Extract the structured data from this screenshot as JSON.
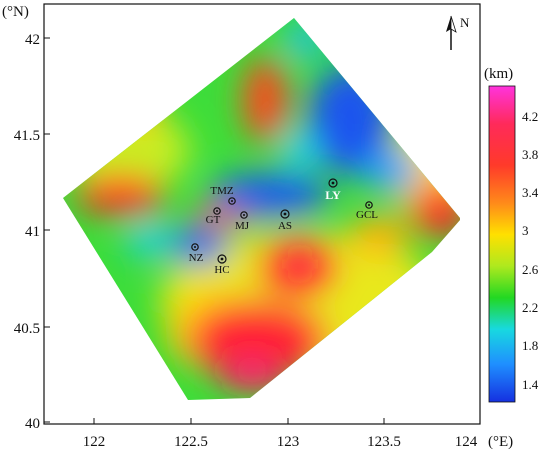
{
  "axes": {
    "x_unit": "(°E)",
    "y_unit": "(°N)",
    "x_ticks": [
      "122",
      "122.5",
      "123",
      "123.5",
      "124"
    ],
    "y_ticks": [
      "42",
      "41.5",
      "41",
      "40.5",
      "40"
    ]
  },
  "north_arrow": {
    "label": "N",
    "icon": "north-arrow-icon"
  },
  "colorbar": {
    "unit": "(km)",
    "ticks": [
      "4.2",
      "3.8",
      "3.4",
      "3",
      "2.6",
      "2.2",
      "1.8",
      "1.4"
    ],
    "colors": [
      "#ff33dd",
      "#ff2a2a",
      "#ff7a1a",
      "#ffe000",
      "#aee91e",
      "#22d822",
      "#18d9e0",
      "#1f8fff",
      "#1530e0"
    ]
  },
  "stations": [
    {
      "code": "TMZ",
      "highlight": false
    },
    {
      "code": "GT",
      "highlight": false
    },
    {
      "code": "MJ",
      "highlight": false
    },
    {
      "code": "AS",
      "highlight": false
    },
    {
      "code": "LY",
      "highlight": true
    },
    {
      "code": "GCL",
      "highlight": false
    },
    {
      "code": "NZ",
      "highlight": false
    },
    {
      "code": "HC",
      "highlight": false
    }
  ]
}
